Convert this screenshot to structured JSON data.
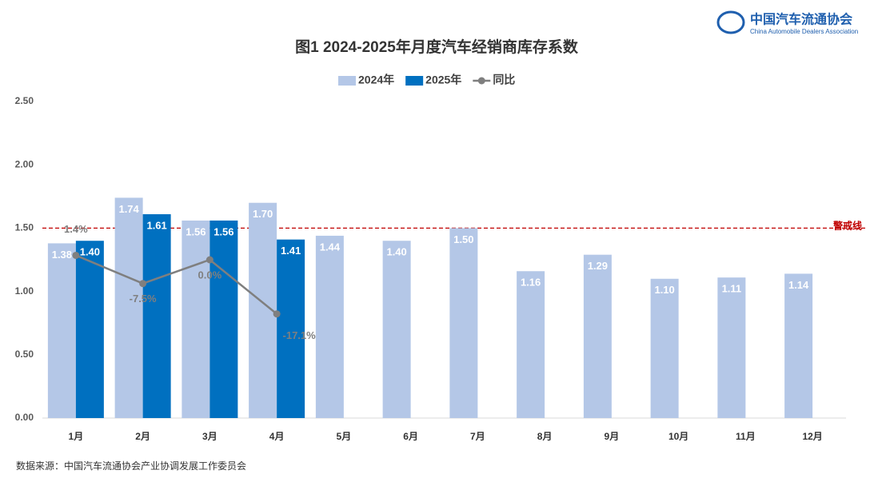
{
  "chart_data": {
    "type": "bar",
    "title": "图1  2024-2025年月度汽车经销商库存系数",
    "logo": {
      "name": "中国汽车流通协会",
      "english": "China Automobile Dealers Association"
    },
    "source": "数据来源：中国汽车流通协会产业协调发展工作委员会",
    "categories": [
      "1月",
      "2月",
      "3月",
      "4月",
      "5月",
      "6月",
      "7月",
      "8月",
      "9月",
      "10月",
      "11月",
      "12月"
    ],
    "series": [
      {
        "name": "2024年",
        "color": "#b4c7e7",
        "type": "bar",
        "values": [
          1.38,
          1.74,
          1.56,
          1.7,
          1.44,
          1.4,
          1.5,
          1.16,
          1.29,
          1.1,
          1.11,
          1.14
        ],
        "value_labels": [
          "1.38",
          "1.74",
          "1.56",
          "1.70",
          "1.44",
          "1.40",
          "1.50",
          "1.16",
          "1.29",
          "1.10",
          "1.11",
          "1.14"
        ]
      },
      {
        "name": "2025年",
        "color": "#0070c0",
        "type": "bar",
        "values": [
          1.4,
          1.61,
          1.56,
          1.41,
          null,
          null,
          null,
          null,
          null,
          null,
          null,
          null
        ],
        "value_labels": [
          "1.40",
          "1.61",
          "1.56",
          "1.41",
          null,
          null,
          null,
          null,
          null,
          null,
          null,
          null
        ]
      },
      {
        "name": "同比",
        "color": "#7f7f7f",
        "type": "line",
        "axis": "y2",
        "values": [
          1.4,
          -7.5,
          0.0,
          -17.1,
          null,
          null,
          null,
          null,
          null,
          null,
          null,
          null
        ],
        "value_labels": [
          "1.4%",
          "-7.5%",
          "0.0%",
          "-17.1%",
          null,
          null,
          null,
          null,
          null,
          null,
          null,
          null
        ]
      }
    ],
    "ylim": [
      0,
      2.5
    ],
    "yticks": [
      {
        "value": 0,
        "label": "0.00"
      },
      {
        "value": 0.5,
        "label": "0.50"
      },
      {
        "value": 1,
        "label": "1.00"
      },
      {
        "value": 1.5,
        "label": "1.50"
      },
      {
        "value": 2,
        "label": "2.00"
      },
      {
        "value": 2.5,
        "label": "2.50"
      }
    ],
    "y2lim": [
      -50,
      50
    ],
    "reference_line": {
      "value": 1.5,
      "label": "警戒线",
      "color": "#c00000"
    },
    "grid": false,
    "legend": "top"
  }
}
